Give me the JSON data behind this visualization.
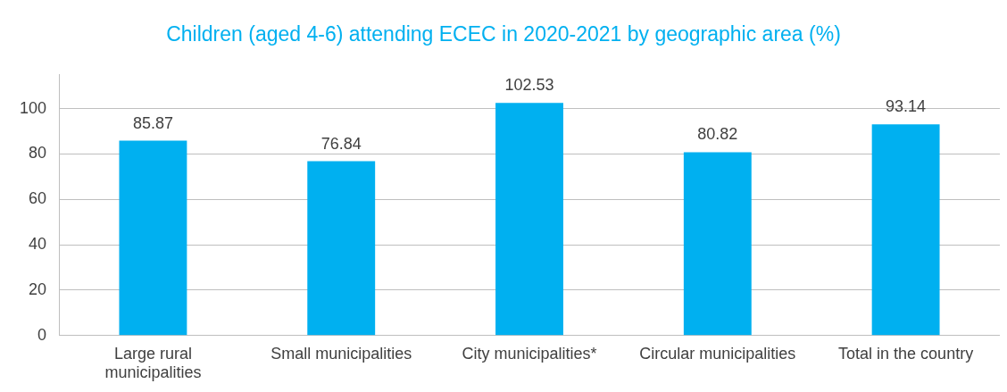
{
  "chart_data": {
    "type": "bar",
    "title": "Children (aged 4-6) attending ECEC in 2020-2021 by geographic area (%)",
    "categories": [
      "Large rural municipalities",
      "Small municipalities",
      "City municipalities*",
      "Circular municipalities",
      "Total in the country"
    ],
    "values": [
      85.87,
      76.84,
      102.53,
      80.82,
      93.14
    ],
    "color": "#00b0f0",
    "ylim": [
      0,
      115
    ],
    "yticks": [
      0,
      20,
      40,
      60,
      80,
      100
    ],
    "grid": "y",
    "legend": false,
    "data_labels": true
  }
}
